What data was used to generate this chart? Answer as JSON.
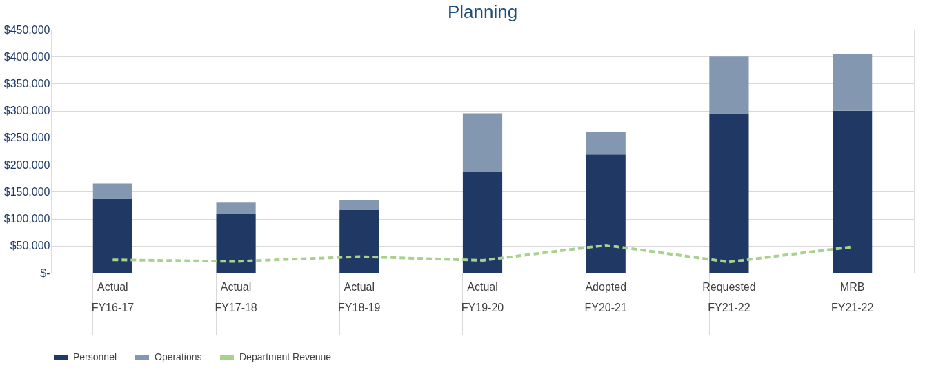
{
  "chart_data": {
    "type": "bar",
    "title": "Planning",
    "stacked": true,
    "categories": [
      "Actual\nFY16-17",
      "Actual\nFY17-18",
      "Actual\nFY18-19",
      "Actual\nFY19-20",
      "Adopted\nFY20-21",
      "Requested\nFY21-22",
      "MRB\nFY21-22"
    ],
    "series": [
      {
        "name": "Personnel",
        "color": "#1f3864",
        "values": [
          137000,
          109000,
          116000,
          186000,
          219000,
          295000,
          300000
        ]
      },
      {
        "name": "Operations",
        "color": "#8497b0",
        "values": [
          28000,
          22000,
          19000,
          109000,
          42000,
          105000,
          105000
        ]
      },
      {
        "name": "Department Revenue",
        "type": "line",
        "color": "#a9d18e",
        "line_style": "dashed",
        "marker": "none",
        "values": [
          24000,
          21000,
          30000,
          23000,
          51000,
          20000,
          48000
        ]
      }
    ],
    "ylim": [
      0,
      450000
    ],
    "yticks": [
      {
        "value": 0,
        "label": "$-"
      },
      {
        "value": 50000,
        "label": "$50,000"
      },
      {
        "value": 100000,
        "label": "$100,000"
      },
      {
        "value": 150000,
        "label": "$150,000"
      },
      {
        "value": 200000,
        "label": "$200,000"
      },
      {
        "value": 250000,
        "label": "$250,000"
      },
      {
        "value": 300000,
        "label": "$300,000"
      },
      {
        "value": 350000,
        "label": "$350,000"
      },
      {
        "value": 400000,
        "label": "$400,000"
      },
      {
        "value": 450000,
        "label": "$450,000"
      }
    ],
    "grid": "y",
    "legend": "bottom"
  }
}
